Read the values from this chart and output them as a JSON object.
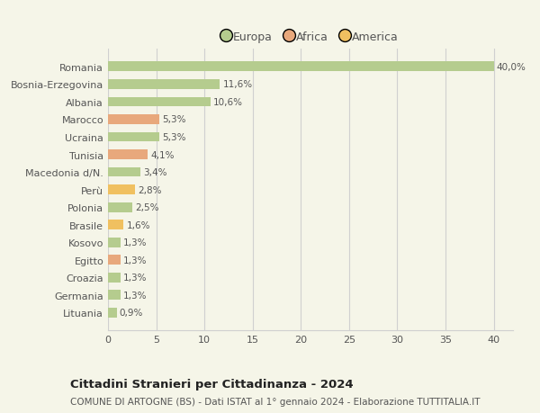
{
  "categories": [
    "Romania",
    "Bosnia-Erzegovina",
    "Albania",
    "Marocco",
    "Ucraina",
    "Tunisia",
    "Macedonia d/N.",
    "Perù",
    "Polonia",
    "Brasile",
    "Kosovo",
    "Egitto",
    "Croazia",
    "Germania",
    "Lituania"
  ],
  "values": [
    40.0,
    11.6,
    10.6,
    5.3,
    5.3,
    4.1,
    3.4,
    2.8,
    2.5,
    1.6,
    1.3,
    1.3,
    1.3,
    1.3,
    0.9
  ],
  "labels": [
    "40,0%",
    "11,6%",
    "10,6%",
    "5,3%",
    "5,3%",
    "4,1%",
    "3,4%",
    "2,8%",
    "2,5%",
    "1,6%",
    "1,3%",
    "1,3%",
    "1,3%",
    "1,3%",
    "0,9%"
  ],
  "continent": [
    "Europa",
    "Europa",
    "Europa",
    "Africa",
    "Europa",
    "Africa",
    "Europa",
    "America",
    "Europa",
    "America",
    "Europa",
    "Africa",
    "Europa",
    "Europa",
    "Europa"
  ],
  "color_europa": "#b5cc8e",
  "color_africa": "#e8a87c",
  "color_america": "#f0c060",
  "bg_color": "#f5f5e8",
  "grid_color": "#d0d0d0",
  "title": "Cittadini Stranieri per Cittadinanza - 2024",
  "subtitle": "COMUNE DI ARTOGNE (BS) - Dati ISTAT al 1° gennaio 2024 - Elaborazione TUTTITALIA.IT",
  "xlabel_vals": [
    0,
    5,
    10,
    15,
    20,
    25,
    30,
    35,
    40
  ],
  "xlim": [
    0,
    42
  ],
  "legend_labels": [
    "Europa",
    "Africa",
    "America"
  ],
  "legend_colors": [
    "#b5cc8e",
    "#e8a87c",
    "#f0c060"
  ]
}
